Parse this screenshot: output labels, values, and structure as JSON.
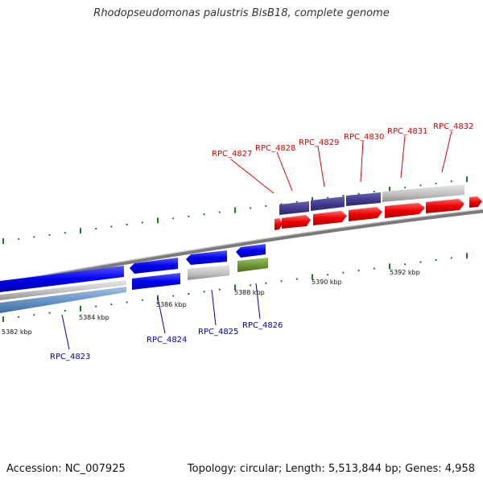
{
  "title": "Rhodopseudomonas palustris BisB18, complete genome",
  "footer": {
    "accession": "Accession: NC_007925",
    "summary": "Topology: circular; Length: 5,513,844 bp; Genes: 4,958"
  },
  "colors": {
    "forward_label": "#dd0000",
    "reverse_label": "#0000aa",
    "tick_green": "#1a7a1a",
    "backbone": "#888888"
  },
  "scale": {
    "unit": "kbp",
    "ticks": [
      {
        "kbp": 5382,
        "label": "5382 kbp"
      },
      {
        "kbp": 5384,
        "label": "5384 kbp"
      },
      {
        "kbp": 5386,
        "label": "5386 kbp"
      },
      {
        "kbp": 5388,
        "label": "5388 kbp"
      },
      {
        "kbp": 5390,
        "label": "5390 kbp"
      },
      {
        "kbp": 5392,
        "label": "5392 kbp"
      }
    ]
  },
  "genes": {
    "forward": [
      {
        "label": "RPC_4827"
      },
      {
        "label": "RPC_4828"
      },
      {
        "label": "RPC_4829"
      },
      {
        "label": "RPC_4830"
      },
      {
        "label": "RPC_4831"
      },
      {
        "label": "RPC_4832"
      }
    ],
    "reverse": [
      {
        "label": "RPC_4823"
      },
      {
        "label": "RPC_4824"
      },
      {
        "label": "RPC_4825"
      },
      {
        "label": "RPC_4826"
      }
    ]
  }
}
